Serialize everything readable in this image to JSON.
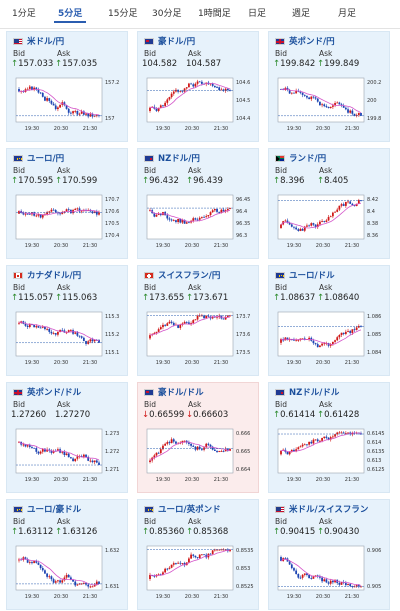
{
  "tabs": [
    "1分足",
    "5分足",
    "15分足",
    "30分足",
    "1時間足",
    "日足",
    "週足",
    "月足"
  ],
  "active_tab": 1,
  "labels": {
    "bid": "Bid",
    "ask": "Ask"
  },
  "time_labels": [
    "19:30",
    "20:30",
    "21:30"
  ],
  "colors": {
    "up": "#d01818",
    "down": "#1d45b3",
    "ma": "#d455c9",
    "price": "#2a5db0",
    "alert": "#fbecec"
  },
  "cards": [
    {
      "title": "米ドル/円",
      "flag": "us",
      "bid": "157.033",
      "ask": "157.035",
      "dir": "up",
      "y": [
        "157.2",
        "157"
      ],
      "seed": 3,
      "trend": -1
    },
    {
      "title": "豪ドル/円",
      "flag": "au",
      "bid": "104.582",
      "ask": "104.587",
      "dir": "none",
      "y": [
        "104.6",
        "104.5",
        "104.4"
      ],
      "seed": 5,
      "trend": 1
    },
    {
      "title": "英ポンド/円",
      "flag": "gb",
      "bid": "199.842",
      "ask": "199.849",
      "dir": "up",
      "y": [
        "200.2",
        "200",
        "199.8"
      ],
      "seed": 7,
      "trend": -1
    },
    {
      "title": "ユーロ/円",
      "flag": "eu",
      "bid": "170.595",
      "ask": "170.599",
      "dir": "up",
      "y": [
        "170.7",
        "170.6",
        "170.5",
        "170.4"
      ],
      "seed": 11,
      "trend": -0.3
    },
    {
      "title": "NZドル/円",
      "flag": "nz",
      "bid": "96.432",
      "ask": "96.439",
      "dir": "up",
      "y": [
        "96.45",
        "96.4",
        "96.35",
        "96.3"
      ],
      "seed": 13,
      "trend": -0.6
    },
    {
      "title": "ランド/円",
      "flag": "za",
      "bid": "8.396",
      "ask": "8.405",
      "dir": "up",
      "y": [
        "8.42",
        "8.4",
        "8.38",
        "8.36"
      ],
      "seed": 17,
      "trend": 1
    },
    {
      "title": "カナダドル/円",
      "flag": "ca",
      "bid": "115.057",
      "ask": "115.063",
      "dir": "up",
      "y": [
        "115.3",
        "115.2",
        "115.1"
      ],
      "seed": 19,
      "trend": -1
    },
    {
      "title": "スイスフラン/円",
      "flag": "ch",
      "bid": "173.655",
      "ask": "173.671",
      "dir": "up",
      "y": [
        "173.7",
        "173.6",
        "173.5"
      ],
      "seed": 23,
      "trend": 0.4
    },
    {
      "title": "ユーロ/ドル",
      "flag": "eu",
      "bid": "1.08637",
      "ask": "1.08640",
      "dir": "up",
      "y": [
        "1.086",
        "1.085",
        "1.084"
      ],
      "seed": 29,
      "trend": 0.8
    },
    {
      "title": "英ポンド/ドル",
      "flag": "gb",
      "bid": "1.27260",
      "ask": "1.27270",
      "dir": "none",
      "y": [
        "1.273",
        "1.272",
        "1.271"
      ],
      "seed": 31,
      "trend": -0.8
    },
    {
      "title": "豪ドル/ドル",
      "flag": "au",
      "bid": "0.66599",
      "ask": "0.66603",
      "dir": "down",
      "y": [
        "0.666",
        "0.665",
        "0.664"
      ],
      "seed": 37,
      "trend": 1,
      "alert": true
    },
    {
      "title": "NZドル/ドル",
      "flag": "nz",
      "bid": "0.61414",
      "ask": "0.61428",
      "dir": "up",
      "y": [
        "0.6145",
        "0.614",
        "0.6135",
        "0.613",
        "0.6125"
      ],
      "seed": 41,
      "trend": 0.3
    },
    {
      "title": "ユーロ/豪ドル",
      "flag": "eu",
      "bid": "1.63112",
      "ask": "1.63126",
      "dir": "up",
      "y": [
        "1.632",
        "1.631"
      ],
      "seed": 43,
      "trend": -0.7
    },
    {
      "title": "ユーロ/英ポンド",
      "flag": "eu",
      "bid": "0.85360",
      "ask": "0.85368",
      "dir": "up",
      "y": [
        "0.8535",
        "0.853",
        "0.8525"
      ],
      "seed": 47,
      "trend": 1
    },
    {
      "title": "米ドル/スイスフラン",
      "flag": "us",
      "bid": "0.90415",
      "ask": "0.90430",
      "dir": "up",
      "y": [
        "0.906",
        "0.905"
      ],
      "seed": 53,
      "trend": -1
    }
  ]
}
